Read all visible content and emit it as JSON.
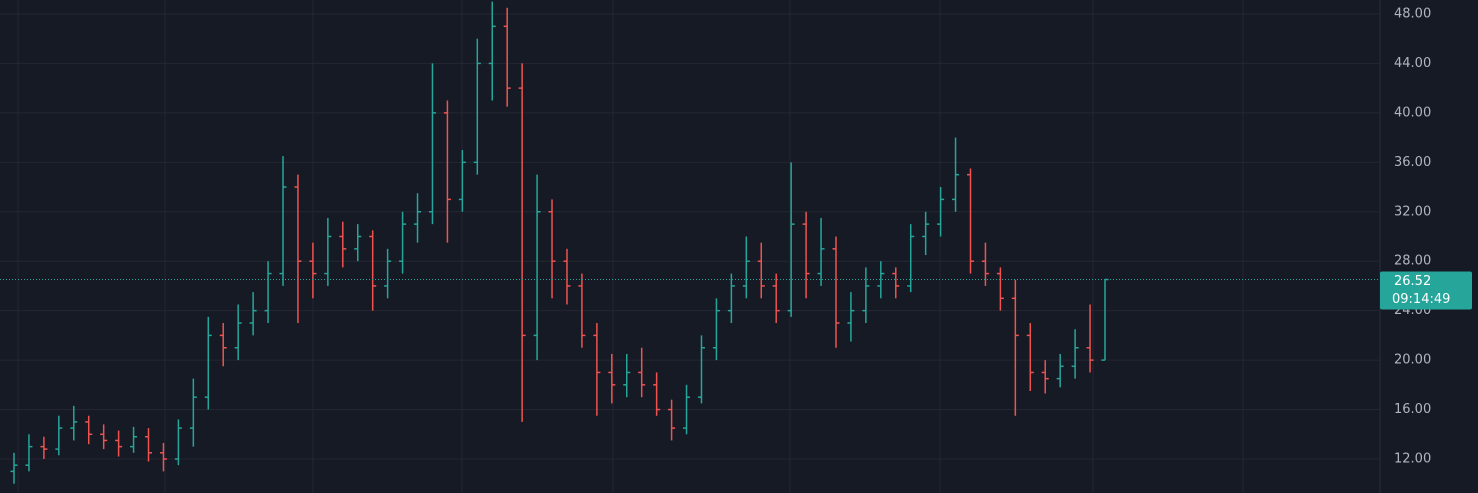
{
  "chart_data": {
    "type": "ohlc",
    "up_color": "#26a69a",
    "down_color": "#ef5350",
    "open": [
      11,
      11.5,
      13,
      12.8,
      14.5,
      15,
      14,
      13.5,
      13,
      13.8,
      12.5,
      12,
      14.5,
      17,
      22,
      21,
      23,
      24,
      27,
      34,
      28,
      27,
      30,
      29,
      30,
      26,
      28,
      31,
      32,
      40,
      33,
      36,
      44,
      47,
      42,
      22,
      32,
      28,
      26,
      22,
      19,
      18,
      19,
      18,
      16,
      14.5,
      17,
      21,
      24,
      26,
      28,
      26,
      24,
      31,
      27,
      29,
      23,
      24,
      26,
      27,
      26,
      30,
      31,
      33,
      35,
      28,
      27,
      25,
      22,
      19,
      18.5,
      19.5,
      21,
      20
    ],
    "high": [
      12.5,
      14,
      13.8,
      15.5,
      16.3,
      15.5,
      14.8,
      14.3,
      14.6,
      14.5,
      13.3,
      15.2,
      18.5,
      23.5,
      23,
      24.5,
      25.5,
      28,
      36.5,
      35,
      29.5,
      31.5,
      31.2,
      31,
      30.5,
      29,
      32,
      33.5,
      44,
      41,
      37,
      46,
      49,
      48.5,
      44,
      35,
      33,
      29,
      27,
      23,
      20.5,
      20.5,
      21,
      19,
      16.8,
      18,
      22,
      25,
      27,
      30,
      29.5,
      27,
      36,
      32,
      31.5,
      30,
      25.5,
      27.5,
      28,
      27.5,
      31,
      32,
      34,
      38,
      35.5,
      29.5,
      27.5,
      26.5,
      23,
      20,
      20.5,
      22.5,
      24.5,
      26.52
    ],
    "low": [
      10,
      11,
      12,
      12.3,
      13.5,
      13.2,
      12.8,
      12.2,
      12.5,
      11.8,
      11,
      11.5,
      13,
      16,
      19.5,
      20,
      22,
      23,
      26,
      23,
      25,
      26,
      27.5,
      28,
      24,
      25,
      27,
      29.5,
      31,
      29.5,
      32,
      35,
      41,
      40.5,
      15,
      20,
      25,
      24.5,
      21,
      15.5,
      16.5,
      17,
      17,
      15.5,
      13.5,
      14,
      16.5,
      20,
      23,
      25,
      25,
      23,
      23.5,
      25,
      26,
      21,
      21.5,
      23,
      25,
      25,
      25.5,
      28.5,
      30,
      32,
      27,
      26,
      24,
      15.5,
      17.5,
      17.3,
      17.8,
      18.5,
      19,
      20
    ],
    "close": [
      11.5,
      13,
      12.8,
      14.5,
      15,
      14,
      13.5,
      13,
      13.8,
      12.5,
      12,
      14.5,
      17,
      22,
      21,
      23,
      24,
      27,
      34,
      28,
      27,
      30,
      29,
      30,
      26,
      28,
      31,
      32,
      40,
      33,
      36,
      44,
      47,
      42,
      22,
      32,
      28,
      26,
      22,
      19,
      18,
      19,
      18,
      16,
      14.5,
      17,
      21,
      24,
      26,
      28,
      26,
      24,
      31,
      27,
      29,
      23,
      24,
      26,
      27,
      26,
      30,
      31,
      33,
      35,
      28,
      27,
      25,
      22,
      19,
      18.5,
      19.5,
      21,
      20,
      26.52
    ],
    "ylim": [
      9.25,
      49.13
    ],
    "yticks": [
      {
        "value": 12,
        "label": "12.00"
      },
      {
        "value": 16,
        "label": "16.00"
      },
      {
        "value": 20,
        "label": "20.00"
      },
      {
        "value": 24,
        "label": "24.00"
      },
      {
        "value": 28,
        "label": "28.00"
      },
      {
        "value": 32,
        "label": "32.00"
      },
      {
        "value": 36,
        "label": "36.00"
      },
      {
        "value": 40,
        "label": "40.00"
      },
      {
        "value": 44,
        "label": "44.00"
      },
      {
        "value": 48,
        "label": "48.00"
      }
    ],
    "grid": true,
    "last_price": 26.52,
    "countdown": "09:14:49"
  }
}
